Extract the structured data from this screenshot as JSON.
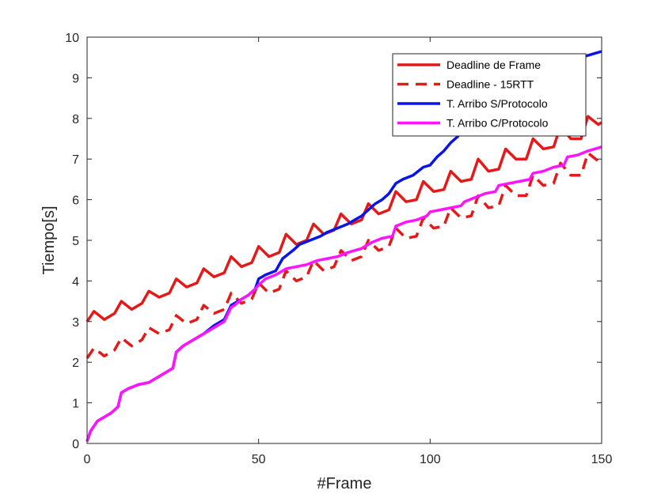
{
  "chart_data": {
    "type": "line",
    "xlabel": "#Frame",
    "ylabel": "Tiempo[s]",
    "xlim": [
      0,
      150
    ],
    "ylim": [
      0,
      10
    ],
    "xticks": [
      0,
      50,
      100,
      150
    ],
    "yticks": [
      0,
      1,
      2,
      3,
      4,
      5,
      6,
      7,
      8,
      9,
      10
    ],
    "grid": false,
    "legend_position": "top-right",
    "series": [
      {
        "name": "Deadline de Frame",
        "color": "#e41a1a",
        "style": "solid",
        "x": [
          0,
          2,
          5,
          8,
          10,
          13,
          16,
          18,
          21,
          24,
          26,
          29,
          32,
          34,
          37,
          40,
          42,
          45,
          48,
          50,
          53,
          56,
          58,
          61,
          64,
          66,
          69,
          72,
          74,
          77,
          80,
          82,
          85,
          88,
          90,
          93,
          96,
          98,
          101,
          104,
          106,
          109,
          112,
          114,
          117,
          120,
          122,
          125,
          128,
          130,
          133,
          136,
          138,
          141,
          144,
          146,
          149,
          150
        ],
        "y": [
          3.0,
          3.25,
          3.05,
          3.2,
          3.5,
          3.3,
          3.45,
          3.75,
          3.6,
          3.7,
          4.05,
          3.85,
          3.95,
          4.3,
          4.1,
          4.2,
          4.6,
          4.35,
          4.45,
          4.85,
          4.6,
          4.7,
          5.15,
          4.9,
          5.0,
          5.4,
          5.15,
          5.25,
          5.65,
          5.4,
          5.5,
          5.9,
          5.65,
          5.75,
          6.2,
          5.95,
          6.0,
          6.45,
          6.2,
          6.25,
          6.7,
          6.45,
          6.5,
          7.0,
          6.7,
          6.75,
          7.25,
          7.0,
          7.0,
          7.5,
          7.25,
          7.3,
          7.8,
          7.5,
          7.5,
          8.05,
          7.85,
          7.9
        ]
      },
      {
        "name": "Deadline - 15RTT",
        "color": "#e41a1a",
        "style": "dashed",
        "x": [
          0,
          2,
          5,
          8,
          10,
          13,
          16,
          18,
          21,
          24,
          26,
          29,
          32,
          34,
          37,
          40,
          42,
          45,
          48,
          50,
          53,
          56,
          58,
          61,
          64,
          66,
          69,
          72,
          74,
          77,
          80,
          82,
          85,
          88,
          90,
          93,
          96,
          98,
          101,
          104,
          106,
          109,
          112,
          114,
          117,
          120,
          122,
          125,
          128,
          130,
          133,
          136,
          138,
          141,
          144,
          146,
          149,
          150
        ],
        "y": [
          2.1,
          2.35,
          2.15,
          2.3,
          2.6,
          2.4,
          2.55,
          2.85,
          2.7,
          2.8,
          3.15,
          2.95,
          3.05,
          3.4,
          3.2,
          3.3,
          3.7,
          3.45,
          3.55,
          3.95,
          3.7,
          3.8,
          4.25,
          4.0,
          4.1,
          4.5,
          4.25,
          4.35,
          4.75,
          4.5,
          4.6,
          5.0,
          4.75,
          4.85,
          5.3,
          5.05,
          5.1,
          5.55,
          5.3,
          5.35,
          5.8,
          5.55,
          5.6,
          6.1,
          5.8,
          5.85,
          6.35,
          6.1,
          6.1,
          6.6,
          6.35,
          6.4,
          6.9,
          6.6,
          6.6,
          7.15,
          6.95,
          7.0
        ]
      },
      {
        "name": "T. Arribo S/Protocolo",
        "color": "#0a14e6",
        "style": "solid",
        "x": [
          0,
          1,
          3,
          5,
          7,
          9,
          10,
          12,
          15,
          18,
          20,
          22,
          25,
          26,
          28,
          31,
          34,
          37,
          40,
          42,
          43,
          45,
          47,
          49,
          50,
          52,
          55,
          57,
          60,
          62,
          65,
          68,
          70,
          73,
          76,
          78,
          80,
          82,
          84,
          86,
          88,
          90,
          92,
          95,
          98,
          100,
          102,
          104,
          106,
          108,
          110,
          112,
          114,
          116,
          118,
          120,
          122,
          124,
          126,
          128,
          130,
          132,
          134,
          136,
          138,
          140,
          142,
          144,
          146,
          148,
          150
        ],
        "y": [
          0.05,
          0.3,
          0.55,
          0.65,
          0.75,
          0.9,
          1.25,
          1.35,
          1.45,
          1.5,
          1.6,
          1.7,
          1.85,
          2.25,
          2.4,
          2.55,
          2.7,
          2.9,
          3.05,
          3.4,
          3.45,
          3.55,
          3.65,
          3.8,
          4.05,
          4.15,
          4.25,
          4.55,
          4.75,
          4.9,
          5.0,
          5.1,
          5.2,
          5.3,
          5.4,
          5.5,
          5.6,
          5.75,
          5.9,
          6.0,
          6.15,
          6.4,
          6.5,
          6.6,
          6.8,
          6.85,
          7.05,
          7.2,
          7.4,
          7.55,
          7.75,
          7.85,
          8.0,
          8.15,
          8.3,
          8.4,
          8.5,
          8.6,
          8.7,
          8.8,
          8.9,
          9.0,
          9.1,
          9.2,
          9.3,
          9.4,
          9.45,
          9.5,
          9.55,
          9.6,
          9.65
        ]
      },
      {
        "name": "T. Arribo C/Protocolo",
        "color": "#ff14ff",
        "style": "solid",
        "x": [
          0,
          1,
          3,
          5,
          7,
          9,
          10,
          12,
          15,
          18,
          20,
          22,
          25,
          26,
          28,
          31,
          34,
          37,
          40,
          42,
          43,
          45,
          47,
          49,
          50,
          52,
          55,
          58,
          61,
          64,
          67,
          70,
          73,
          76,
          80,
          83,
          86,
          89,
          90,
          93,
          96,
          99,
          100,
          103,
          106,
          109,
          110,
          113,
          116,
          119,
          120,
          123,
          126,
          129,
          130,
          133,
          136,
          139,
          140,
          143,
          146,
          148,
          150
        ],
        "y": [
          0.05,
          0.3,
          0.55,
          0.65,
          0.75,
          0.9,
          1.25,
          1.35,
          1.45,
          1.5,
          1.6,
          1.7,
          1.85,
          2.25,
          2.4,
          2.55,
          2.7,
          2.85,
          3.0,
          3.35,
          3.4,
          3.55,
          3.65,
          3.8,
          3.9,
          4.05,
          4.15,
          4.3,
          4.35,
          4.4,
          4.5,
          4.55,
          4.6,
          4.7,
          4.8,
          4.95,
          5.05,
          5.1,
          5.35,
          5.45,
          5.5,
          5.6,
          5.7,
          5.75,
          5.8,
          5.85,
          5.95,
          6.05,
          6.15,
          6.2,
          6.35,
          6.4,
          6.45,
          6.5,
          6.65,
          6.7,
          6.8,
          6.85,
          7.05,
          7.1,
          7.2,
          7.25,
          7.3
        ]
      }
    ]
  }
}
